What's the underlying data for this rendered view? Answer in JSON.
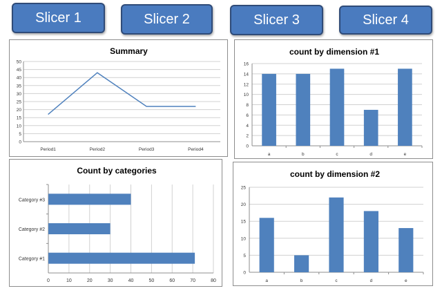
{
  "slicers": [
    "Slicer 1",
    "Slicer 2",
    "Slicer 3",
    "Slicer 4"
  ],
  "colors": {
    "bar": "#4f81bd",
    "slicer_fill": "#4a7bbf",
    "slicer_border": "#2f4b78",
    "panel_border": "#8c8c8c"
  },
  "chart_data": [
    {
      "type": "line",
      "title": "Summary",
      "xlabel": "",
      "ylabel": "",
      "categories": [
        "Period1",
        "Period2",
        "Period3",
        "Period4"
      ],
      "series": [
        {
          "values": [
            17,
            43,
            22,
            22
          ]
        }
      ],
      "ylim": [
        0,
        50
      ],
      "yticks": [
        0,
        5,
        10,
        15,
        20,
        25,
        30,
        35,
        40,
        45,
        50
      ],
      "grid": true
    },
    {
      "type": "bar",
      "title": "count by dimension #1",
      "xlabel": "",
      "ylabel": "",
      "categories": [
        "a",
        "b",
        "c",
        "d",
        "e"
      ],
      "values": [
        14,
        14,
        15,
        7,
        15
      ],
      "ylim": [
        0,
        16
      ],
      "yticks": [
        0,
        2,
        4,
        6,
        8,
        10,
        12,
        14,
        16
      ],
      "grid": true
    },
    {
      "type": "bar",
      "orientation": "horizontal",
      "title": "Count by categories",
      "xlabel": "",
      "ylabel": "",
      "categories": [
        "Category #1",
        "Category #2",
        "Category #3"
      ],
      "values": [
        71,
        30,
        40
      ],
      "xlim": [
        0,
        80
      ],
      "xticks": [
        0,
        10,
        20,
        30,
        40,
        50,
        60,
        70,
        80
      ],
      "grid": true
    },
    {
      "type": "bar",
      "title": "count by dimension #2",
      "xlabel": "",
      "ylabel": "",
      "categories": [
        "a",
        "b",
        "c",
        "d",
        "e"
      ],
      "values": [
        16,
        5,
        22,
        18,
        13
      ],
      "ylim": [
        0,
        25
      ],
      "yticks": [
        0,
        5,
        10,
        15,
        20,
        25
      ],
      "grid": true
    }
  ]
}
